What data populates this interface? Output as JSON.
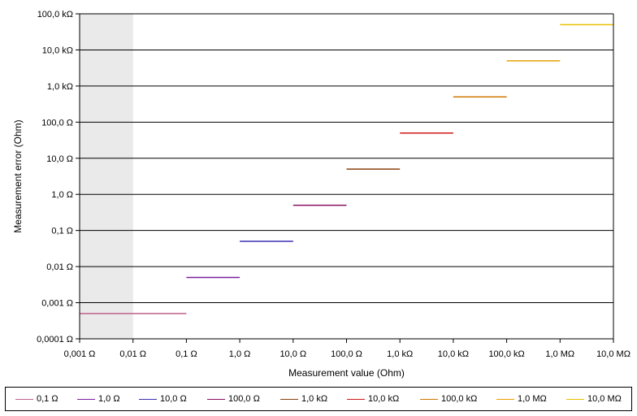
{
  "chart_data": {
    "type": "line",
    "title": "",
    "xlabel": "Measurement value (Ohm)",
    "ylabel": "Measurement error (Ohm)",
    "x_scale": "log",
    "y_scale": "log",
    "xlim": [
      0.001,
      10000000
    ],
    "ylim": [
      0.0001,
      100000
    ],
    "grid": "horizontal major lines",
    "legend_position": "bottom",
    "shaded_region": {
      "from": 0.001,
      "to": 0.01,
      "color": "#eaeaea"
    },
    "x_ticks": [
      {
        "value": 0.001,
        "label": "0,001 Ω"
      },
      {
        "value": 0.01,
        "label": "0,01 Ω"
      },
      {
        "value": 0.1,
        "label": "0,1 Ω"
      },
      {
        "value": 1,
        "label": "1,0 Ω"
      },
      {
        "value": 10,
        "label": "10,0 Ω"
      },
      {
        "value": 100,
        "label": "100,0 Ω"
      },
      {
        "value": 1000,
        "label": "1,0 kΩ"
      },
      {
        "value": 10000,
        "label": "10,0 kΩ"
      },
      {
        "value": 100000,
        "label": "100,0 kΩ"
      },
      {
        "value": 1000000,
        "label": "1,0 MΩ"
      },
      {
        "value": 10000000,
        "label": "10,0 MΩ"
      }
    ],
    "y_ticks": [
      {
        "value": 0.0001,
        "label": "0,0001 Ω"
      },
      {
        "value": 0.001,
        "label": "0,001 Ω"
      },
      {
        "value": 0.01,
        "label": "0,01 Ω"
      },
      {
        "value": 0.1,
        "label": "0,1 Ω"
      },
      {
        "value": 1,
        "label": "1,0 Ω"
      },
      {
        "value": 10,
        "label": "10,0 Ω"
      },
      {
        "value": 100,
        "label": "100,0 Ω"
      },
      {
        "value": 1000,
        "label": "1,0 kΩ"
      },
      {
        "value": 10000,
        "label": "10,0 kΩ"
      },
      {
        "value": 100000,
        "label": "100,0 kΩ"
      }
    ],
    "series": [
      {
        "name": "0,1 Ω",
        "color": "#c0608c",
        "x": [
          0.001,
          0.1
        ],
        "y": [
          0.0005,
          0.0005
        ]
      },
      {
        "name": "1,0 Ω",
        "color": "#7a1fa2",
        "x": [
          0.1,
          1
        ],
        "y": [
          0.005,
          0.005
        ]
      },
      {
        "name": "10,0 Ω",
        "color": "#3a2fb0",
        "x": [
          1,
          10
        ],
        "y": [
          0.05,
          0.05
        ]
      },
      {
        "name": "100,0 Ω",
        "color": "#8a1060",
        "x": [
          10,
          100
        ],
        "y": [
          0.5,
          0.5
        ]
      },
      {
        "name": "1,0 kΩ",
        "color": "#8a4010",
        "x": [
          100,
          1000
        ],
        "y": [
          5,
          5
        ]
      },
      {
        "name": "10,0 kΩ",
        "color": "#d01818",
        "x": [
          1000,
          10000
        ],
        "y": [
          50,
          50
        ]
      },
      {
        "name": "100,0 kΩ",
        "color": "#d07800",
        "x": [
          10000,
          100000
        ],
        "y": [
          500,
          500
        ]
      },
      {
        "name": "1,0 MΩ",
        "color": "#e8a000",
        "x": [
          100000,
          1000000
        ],
        "y": [
          5000,
          5000
        ]
      },
      {
        "name": "10,0 MΩ",
        "color": "#e8c000",
        "x": [
          1000000,
          10000000
        ],
        "y": [
          50000,
          50000
        ]
      }
    ]
  }
}
